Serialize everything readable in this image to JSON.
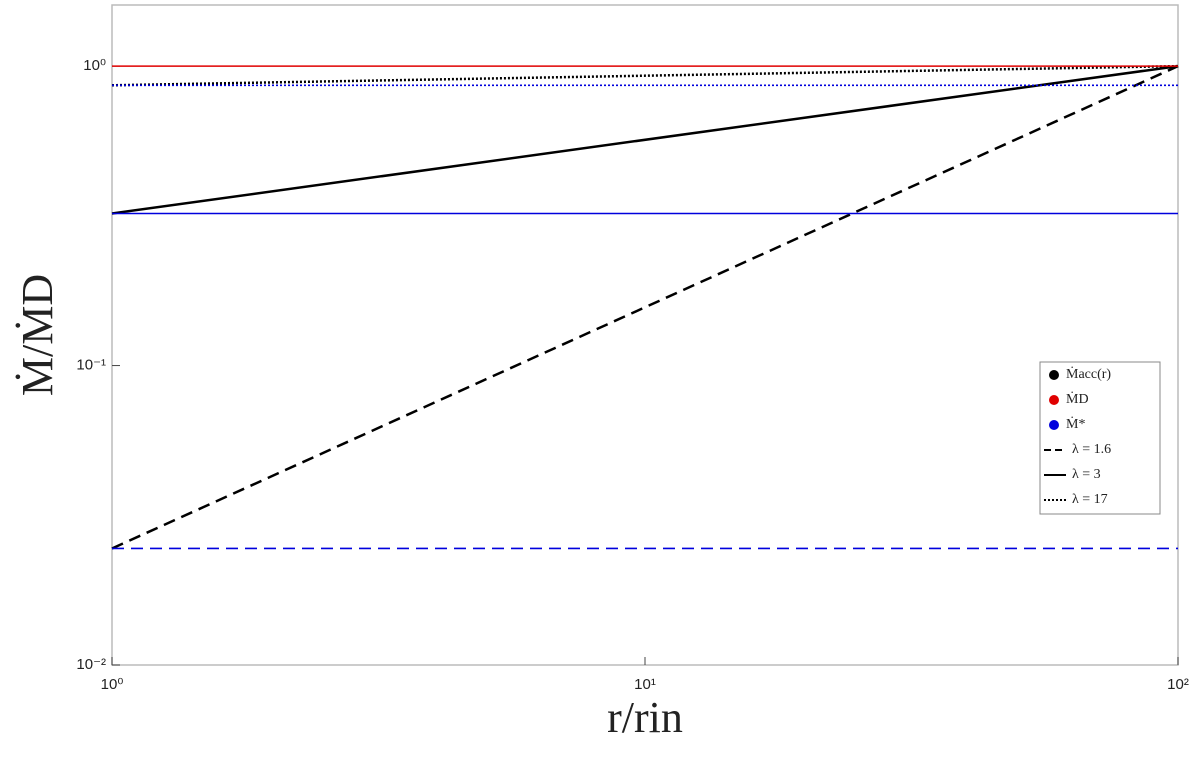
{
  "chart_data": {
    "type": "line",
    "x_label": "r/rin",
    "y_label": "Ṁ/ṀD",
    "x": [
      1,
      100
    ],
    "xlim": [
      1,
      100
    ],
    "ylim": [
      0.01,
      1.6
    ],
    "xscale": "log",
    "yscale": "log",
    "xticks": [
      {
        "value": 1,
        "label": "10⁰"
      },
      {
        "value": 10,
        "label": "10¹"
      },
      {
        "value": 100,
        "label": "10²"
      }
    ],
    "yticks": [
      {
        "value": 0.01,
        "label": "10⁻²"
      },
      {
        "value": 0.1,
        "label": "10⁻¹"
      },
      {
        "value": 1,
        "label": "10⁰"
      }
    ],
    "legend_position": "right",
    "line_styles": [
      {
        "name": "λ = 1.6",
        "dash": "dashed"
      },
      {
        "name": "λ = 3",
        "dash": "solid"
      },
      {
        "name": "λ = 17",
        "dash": "dotted"
      }
    ],
    "series": [
      {
        "name": "Ṁacc(r)",
        "color": "#000000",
        "lines": [
          {
            "dash": "dashed",
            "values": [
              0.0245,
              1
            ]
          },
          {
            "dash": "solid",
            "values": [
              0.322,
              1
            ]
          },
          {
            "dash": "dotted",
            "values": [
              0.863,
              1
            ]
          }
        ]
      },
      {
        "name": "ṀD",
        "color": "#e00000",
        "lines": [
          {
            "dash": "solid",
            "values": [
              1,
              1
            ]
          }
        ]
      },
      {
        "name": "Ṁ*",
        "color": "#0000dd",
        "lines": [
          {
            "dash": "dashed",
            "values": [
              0.0245,
              0.0245
            ]
          },
          {
            "dash": "solid",
            "values": [
              0.322,
              0.322
            ]
          },
          {
            "dash": "dotted",
            "values": [
              0.863,
              0.863
            ]
          }
        ]
      }
    ]
  }
}
